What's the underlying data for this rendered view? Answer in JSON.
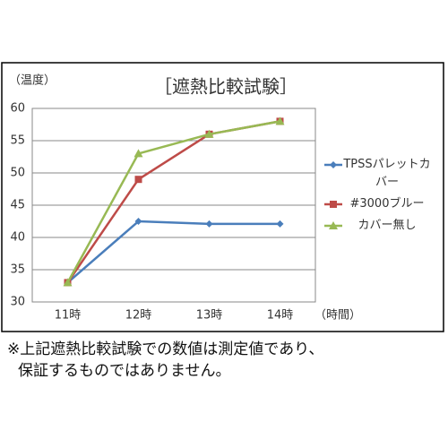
{
  "chart_data": {
    "type": "line",
    "title": "［遮熱比較試験］",
    "y_label": "（温度）",
    "x_label": "（時間）",
    "categories": [
      "11時",
      "12時",
      "13時",
      "14時"
    ],
    "series": [
      {
        "name": "TPSSパレットカバー",
        "color": "#4a7ebb",
        "marker": "diamond",
        "values": [
          33,
          42.5,
          42.1,
          42.1
        ]
      },
      {
        "name": "#3000ブルー",
        "color": "#be4b48",
        "marker": "square",
        "values": [
          33,
          49,
          56,
          58
        ]
      },
      {
        "name": "カバー無し",
        "color": "#98b954",
        "marker": "triangle",
        "values": [
          33,
          53,
          56,
          58
        ]
      }
    ],
    "ylim": [
      30,
      60
    ],
    "yticks": [
      30,
      35,
      40,
      45,
      50,
      55,
      60
    ],
    "grid": true,
    "legend": "right"
  },
  "note": [
    "※上記遮熱比較試験での数値は測定値であり、",
    "保証するものではありません。"
  ]
}
